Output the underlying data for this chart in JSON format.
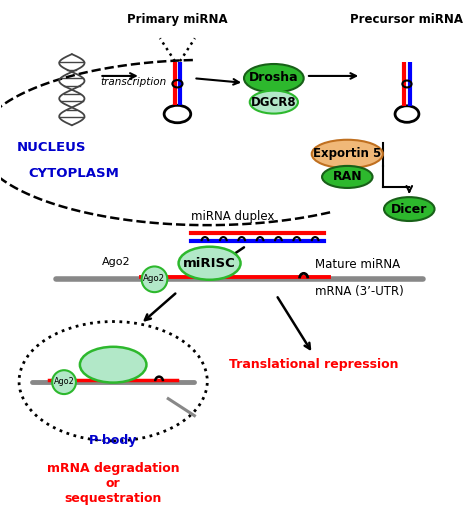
{
  "background_color": "#ffffff",
  "nucleus_label": "NUCLEUS",
  "cytoplasm_label": "CYTOPLASM",
  "primary_mirna_label": "Primary miRNA",
  "precursor_mirna_label": "Precursor miRNA",
  "transcription_label": "transcription",
  "drosha_label": "Drosha",
  "dgcr8_label": "DGCR8",
  "exportin5_label": "Exportin 5",
  "ran_label": "RAN",
  "dicer_label": "Dicer",
  "mirna_duplex_label": "miRNA duplex",
  "mirisc_label": "miRISC",
  "ago2_label": "Ago2",
  "mature_mirna_label": "Mature miRNA",
  "mrna_label": "mRNA (3’-UTR)",
  "pbody_label": "P-body",
  "mrna_deg_label": "mRNA degradation\nor\nsequestration",
  "trans_rep_label": "Translational repression",
  "green_color": "#2db82d",
  "light_green_color": "#b2e8c8",
  "orange_color": "#f0b060",
  "red_color": "#ff0000",
  "blue_color": "#0000ff",
  "nucleus_blue": "#0000cc",
  "gray_color": "#888888",
  "trans_rep_red": "#ff0000",
  "mrna_deg_red": "#ff0000"
}
